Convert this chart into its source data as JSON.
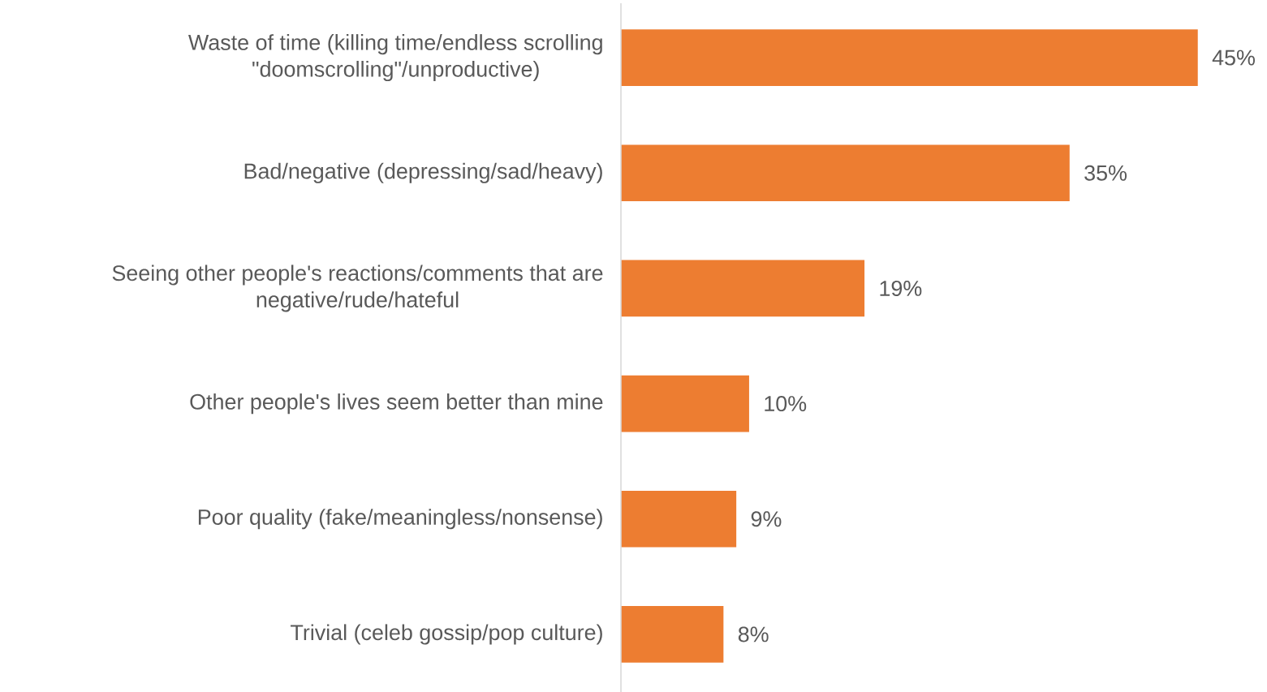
{
  "chart_data": {
    "type": "bar",
    "orientation": "horizontal",
    "categories": [
      "Waste of time (killing time/endless scrolling \"doomscrolling\"/unproductive)",
      "Bad/negative (depressing/sad/heavy)",
      "Seeing other people's reactions/comments that are negative/rude/hateful",
      "Other people's lives seem better than mine",
      "Poor quality (fake/meaningless/nonsense)",
      "Trivial (celeb gossip/pop culture)"
    ],
    "values": [
      45,
      35,
      19,
      10,
      9,
      8
    ],
    "value_labels": [
      "45%",
      "35%",
      "19%",
      "10%",
      "9%",
      "8%"
    ],
    "color": "#ed7d31"
  }
}
